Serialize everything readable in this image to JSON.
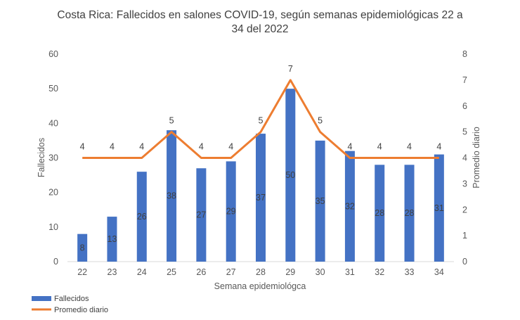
{
  "chart_data": {
    "type": "bar",
    "title": "Costa Rica: Fallecidos en salones COVID-19, según semanas epidemiológicas 22 a 34 del 2022",
    "title_lines": [
      "Costa Rica: Fallecidos en salones COVID-19, según semanas epidemiológicas 22 a",
      "34 del 2022"
    ],
    "xlabel": "Semana epidemiológca",
    "ylabel": "Fallecidos",
    "y2label": "Promedio diario",
    "ylim": [
      0,
      60
    ],
    "y2lim": [
      0,
      8
    ],
    "yticks": [
      0,
      10,
      20,
      30,
      40,
      50,
      60
    ],
    "y2ticks": [
      0,
      1,
      2,
      3,
      4,
      5,
      6,
      7,
      8
    ],
    "categories": [
      "22",
      "23",
      "24",
      "25",
      "26",
      "27",
      "28",
      "29",
      "30",
      "31",
      "32",
      "33",
      "34"
    ],
    "grid": false,
    "legend_position": "bottom-left",
    "series": [
      {
        "name": "Fallecidos",
        "type": "bar",
        "axis": "left",
        "color": "#4472C4",
        "values": [
          8,
          13,
          26,
          38,
          27,
          29,
          37,
          50,
          35,
          32,
          28,
          28,
          31
        ]
      },
      {
        "name": "Promedio diario",
        "type": "line",
        "axis": "right",
        "color": "#ED7D31",
        "values": [
          4,
          4,
          4,
          5,
          4,
          4,
          5,
          7,
          5,
          4,
          4,
          4,
          4
        ]
      }
    ]
  }
}
